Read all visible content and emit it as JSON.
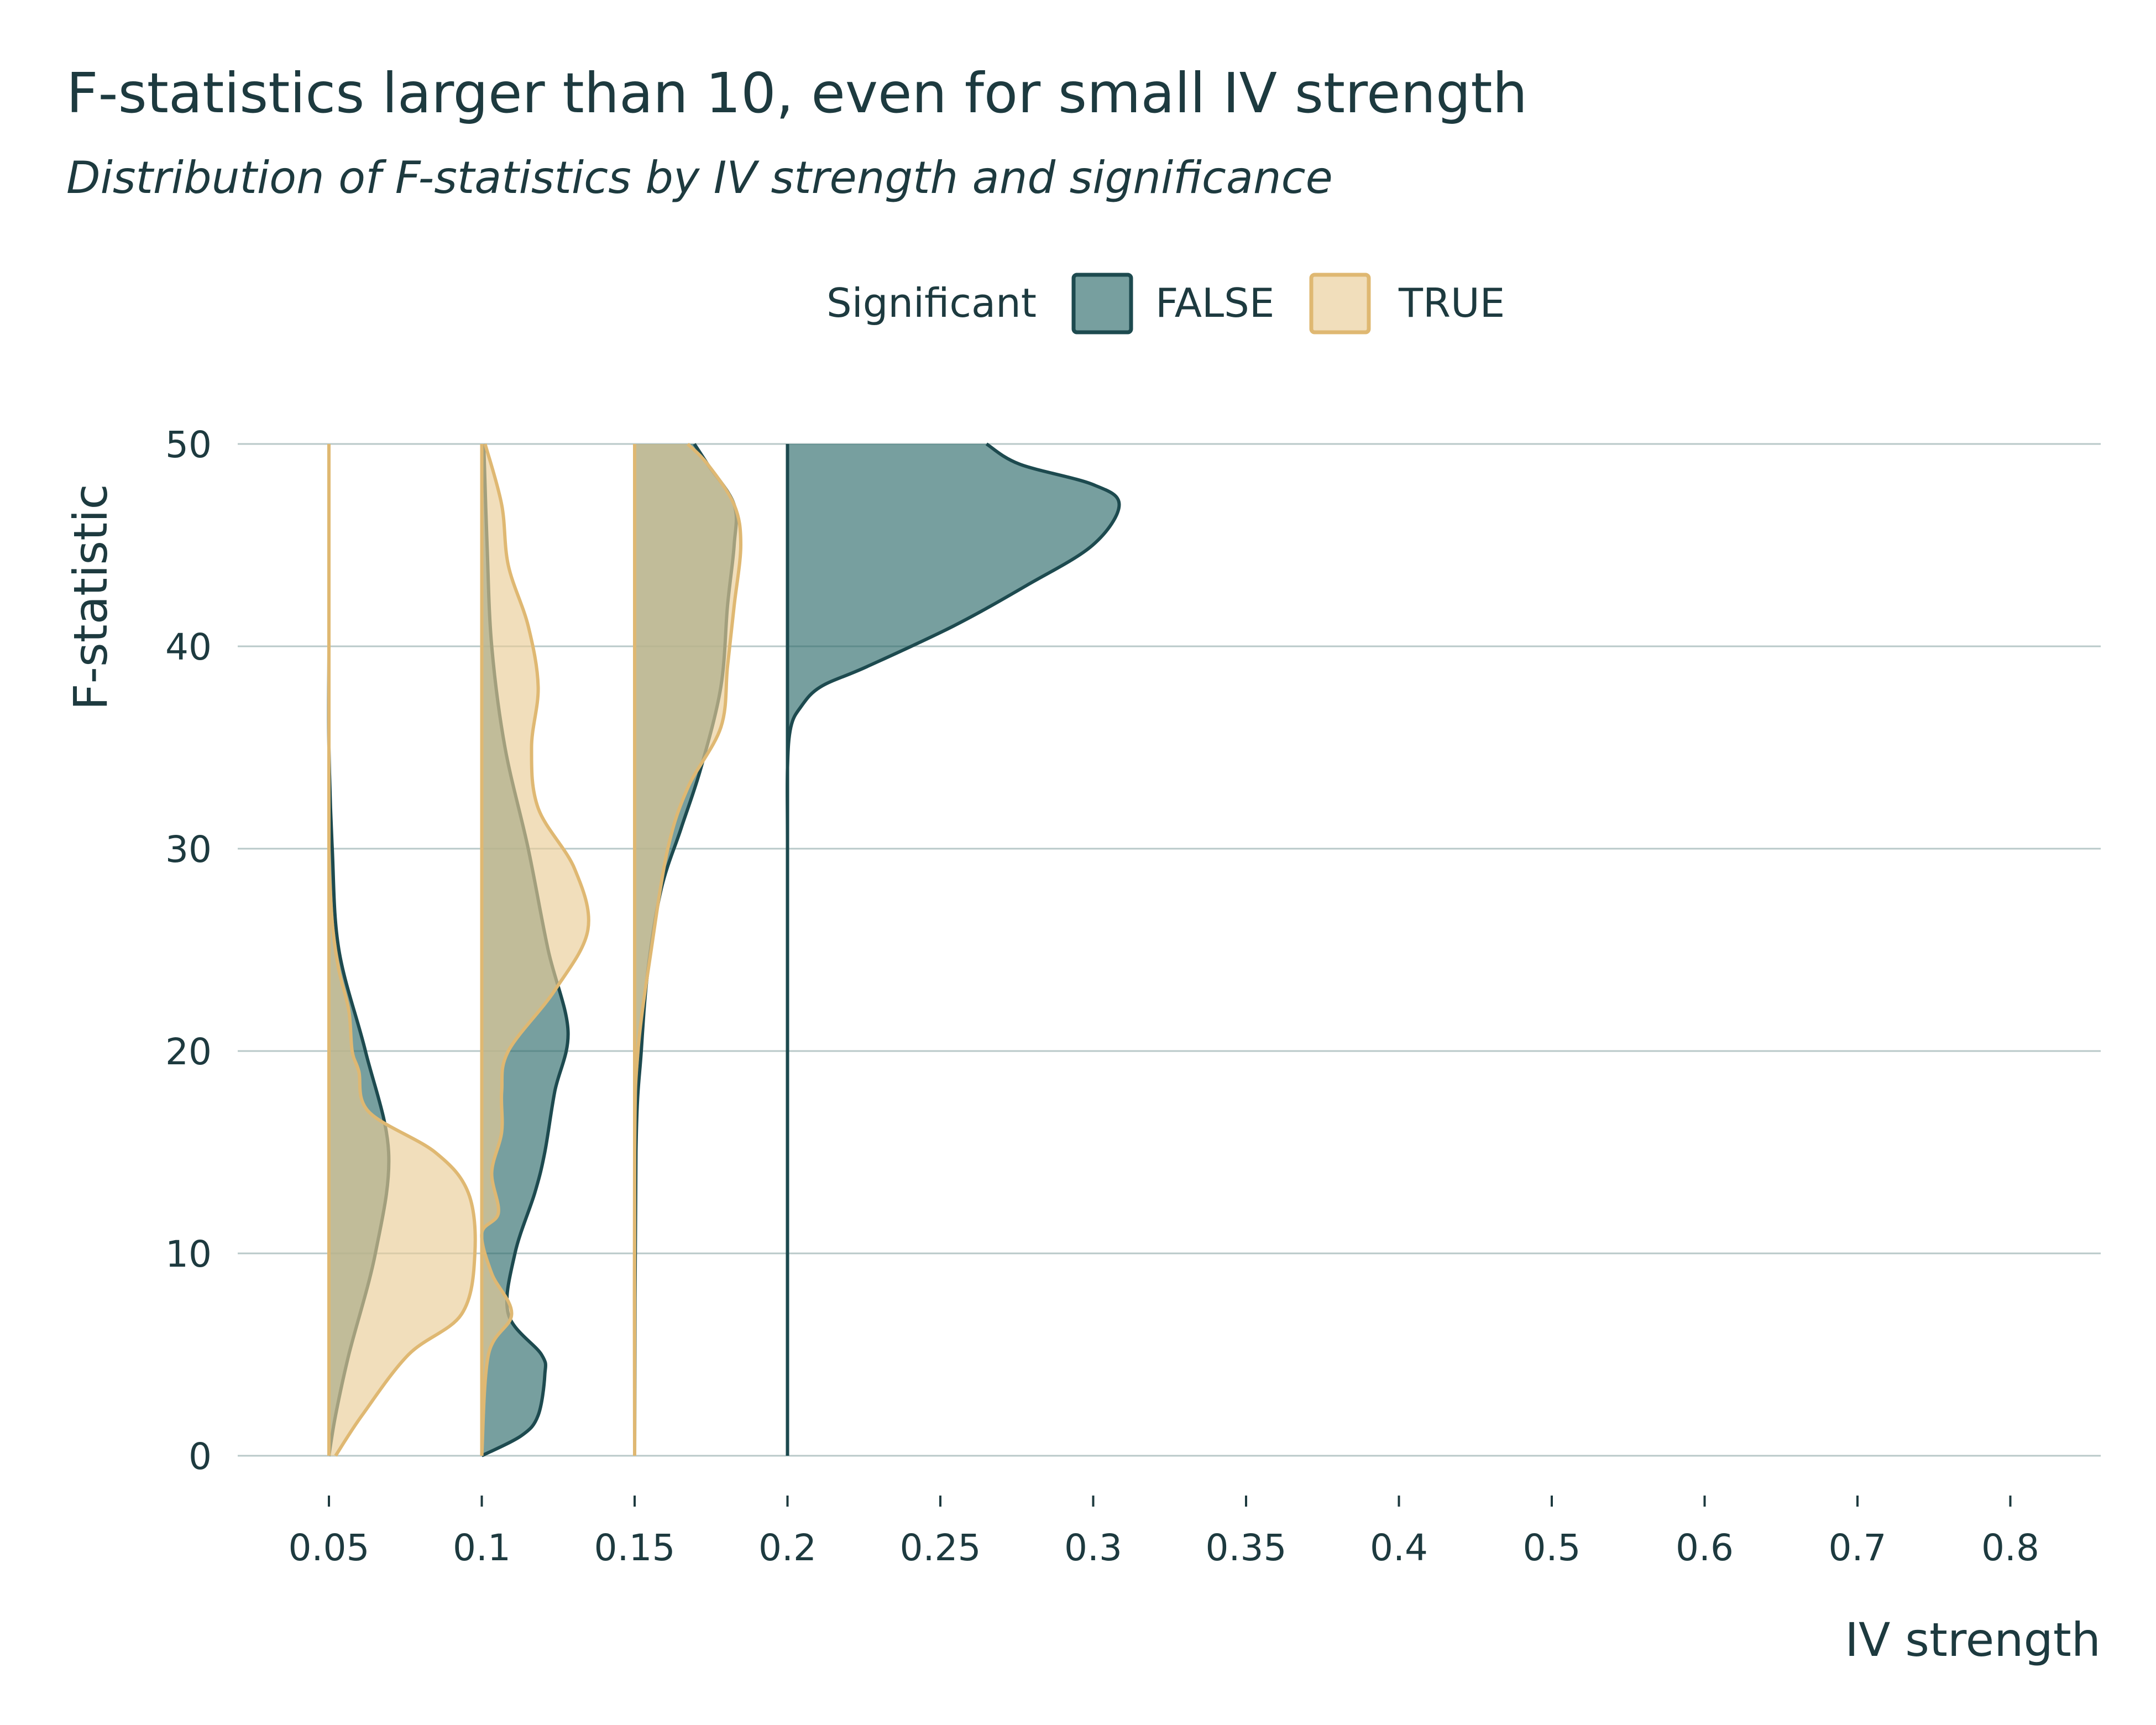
{
  "title": "F-statistics larger than 10, even for small IV strength",
  "subtitle": "Distribution of F-statistics by IV strength and significance",
  "chart_data": {
    "type": "area",
    "subtype": "half-violin density",
    "xlabel": "IV strength",
    "ylabel": "F-statistic",
    "x_categories": [
      "0.05",
      "0.1",
      "0.15",
      "0.2",
      "0.25",
      "0.3",
      "0.35",
      "0.4",
      "0.5",
      "0.6",
      "0.7",
      "0.8"
    ],
    "x_scale": "categorical (equally spaced)",
    "ylim": [
      0,
      50
    ],
    "yticks": [
      0,
      10,
      20,
      30,
      40,
      50
    ],
    "grid": "horizontal only",
    "legend": {
      "title": "Significant",
      "position": "top",
      "entries": [
        {
          "label": "FALSE",
          "fill": "#2e6b6b",
          "stroke": "#1d4a4f"
        },
        {
          "label": "TRUE",
          "fill": "#e9cc96",
          "stroke": "#dfb872"
        }
      ]
    },
    "series": [
      {
        "name": "FALSE",
        "category": "0.05",
        "profile": [
          [
            0,
            0
          ],
          [
            2,
            0.1
          ],
          [
            5,
            0.3
          ],
          [
            10,
            0.7
          ],
          [
            15,
            0.9
          ],
          [
            20,
            0.55
          ],
          [
            25,
            0.15
          ],
          [
            30,
            0.05
          ],
          [
            35,
            0.0
          ],
          [
            40,
            0.0
          ],
          [
            45,
            0.0
          ],
          [
            50,
            0.0
          ]
        ]
      },
      {
        "name": "TRUE",
        "category": "0.05",
        "profile": [
          [
            0,
            0.1
          ],
          [
            2,
            0.5
          ],
          [
            5,
            1.2
          ],
          [
            7,
            2.0
          ],
          [
            10,
            2.2
          ],
          [
            13,
            2.1
          ],
          [
            15,
            1.6
          ],
          [
            17,
            0.6
          ],
          [
            19,
            0.45
          ],
          [
            20,
            0.35
          ],
          [
            22,
            0.3
          ],
          [
            24,
            0.15
          ],
          [
            26,
            0.06
          ],
          [
            28,
            0.02
          ],
          [
            30,
            0
          ],
          [
            35,
            0
          ],
          [
            40,
            0
          ],
          [
            45,
            0
          ],
          [
            50,
            0
          ]
        ]
      },
      {
        "name": "FALSE",
        "category": "0.1",
        "profile": [
          [
            0,
            0
          ],
          [
            1,
            0.6
          ],
          [
            2,
            0.85
          ],
          [
            4,
            0.95
          ],
          [
            5,
            0.9
          ],
          [
            7,
            0.4
          ],
          [
            10,
            0.5
          ],
          [
            13,
            0.8
          ],
          [
            15,
            0.95
          ],
          [
            18,
            1.1
          ],
          [
            21,
            1.3
          ],
          [
            25,
            1.0
          ],
          [
            30,
            0.7
          ],
          [
            35,
            0.35
          ],
          [
            40,
            0.15
          ],
          [
            45,
            0.08
          ],
          [
            50,
            0.03
          ]
        ]
      },
      {
        "name": "TRUE",
        "category": "0.1",
        "profile": [
          [
            0,
            0
          ],
          [
            5,
            0.1
          ],
          [
            7,
            0.45
          ],
          [
            9,
            0.15
          ],
          [
            11,
            0.0
          ],
          [
            12,
            0.25
          ],
          [
            14,
            0.15
          ],
          [
            16,
            0.3
          ],
          [
            18,
            0.3
          ],
          [
            20,
            0.4
          ],
          [
            23,
            1.1
          ],
          [
            26,
            1.6
          ],
          [
            29,
            1.4
          ],
          [
            32,
            0.85
          ],
          [
            35,
            0.75
          ],
          [
            38,
            0.85
          ],
          [
            41,
            0.7
          ],
          [
            44,
            0.4
          ],
          [
            47,
            0.3
          ],
          [
            50,
            0.05
          ]
        ]
      },
      {
        "name": "FALSE",
        "category": "0.15",
        "profile": [
          [
            0,
            0
          ],
          [
            15,
            0.02
          ],
          [
            20,
            0.1
          ],
          [
            24,
            0.2
          ],
          [
            28,
            0.4
          ],
          [
            31,
            0.7
          ],
          [
            34,
            1.0
          ],
          [
            38,
            1.3
          ],
          [
            42,
            1.4
          ],
          [
            45,
            1.5
          ],
          [
            47,
            1.5
          ],
          [
            49,
            1.1
          ],
          [
            50,
            0.9
          ]
        ]
      },
      {
        "name": "TRUE",
        "category": "0.15",
        "profile": [
          [
            0,
            0
          ],
          [
            15,
            0.0
          ],
          [
            20,
            0.05
          ],
          [
            25,
            0.25
          ],
          [
            30,
            0.5
          ],
          [
            33,
            0.8
          ],
          [
            36,
            1.3
          ],
          [
            39,
            1.4
          ],
          [
            42,
            1.5
          ],
          [
            45,
            1.6
          ],
          [
            47,
            1.5
          ],
          [
            49,
            1.1
          ],
          [
            50,
            0.8
          ]
        ]
      },
      {
        "name": "FALSE",
        "category": "0.2",
        "profile": [
          [
            0,
            0
          ],
          [
            20,
            0
          ],
          [
            30,
            0
          ],
          [
            34,
            0
          ],
          [
            36,
            0.05
          ],
          [
            37,
            0.2
          ],
          [
            38,
            0.5
          ],
          [
            39,
            1.2
          ],
          [
            41,
            2.5
          ],
          [
            43,
            3.6
          ],
          [
            45,
            4.6
          ],
          [
            47,
            5.0
          ],
          [
            48,
            4.6
          ],
          [
            49,
            3.5
          ],
          [
            50,
            3.0
          ]
        ]
      }
    ]
  }
}
